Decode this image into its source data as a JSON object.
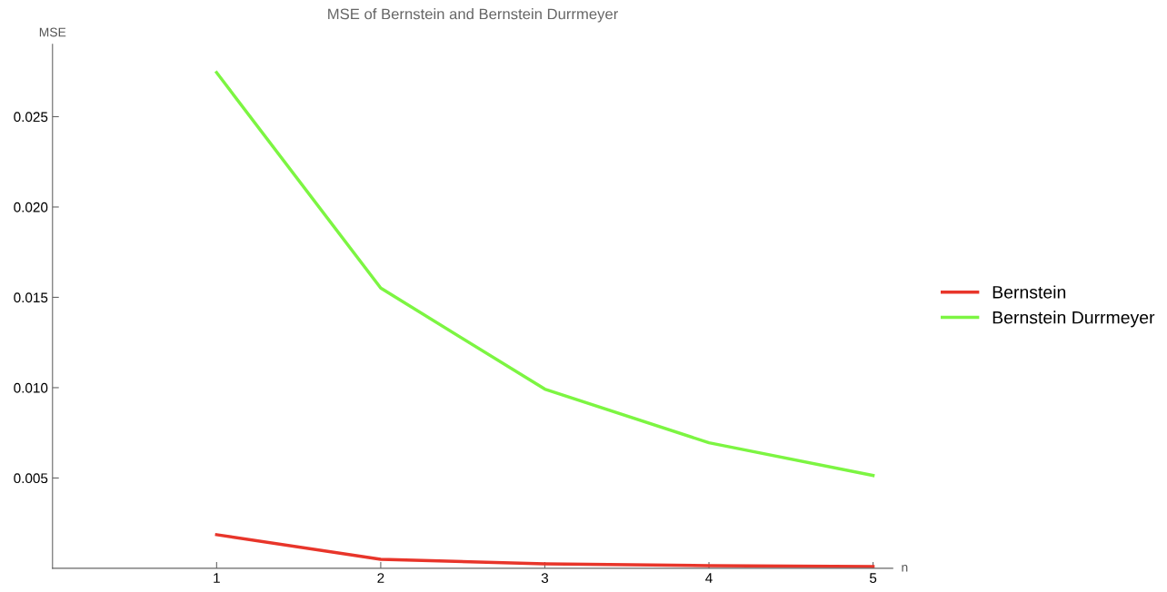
{
  "chart_data": {
    "type": "line",
    "title": "MSE of Bernstein and Bernstein Durrmeyer",
    "xlabel": "n",
    "ylabel": "MSE",
    "x": [
      1,
      2,
      3,
      4,
      5
    ],
    "series": [
      {
        "name": "Bernstein",
        "color": "#e8352a",
        "values": [
          0.00186,
          0.0005,
          0.00025,
          0.00015,
          0.0001
        ]
      },
      {
        "name": "Bernstein Durrmeyer",
        "color": "#7cf542",
        "values": [
          0.02744,
          0.01551,
          0.00992,
          0.00695,
          0.00514
        ]
      }
    ],
    "xlim": [
      0,
      5.12
    ],
    "ylim": [
      0,
      0.029
    ],
    "xticks": [
      1,
      2,
      3,
      4,
      5
    ],
    "yticks": [
      0.005,
      {
        "value": 0.01,
        "label": "0.010"
      },
      0.015,
      {
        "value": 0.02,
        "label": "0.020"
      },
      0.025
    ],
    "grid": false,
    "legend": "right",
    "marker": "none",
    "line_style": "solid"
  }
}
